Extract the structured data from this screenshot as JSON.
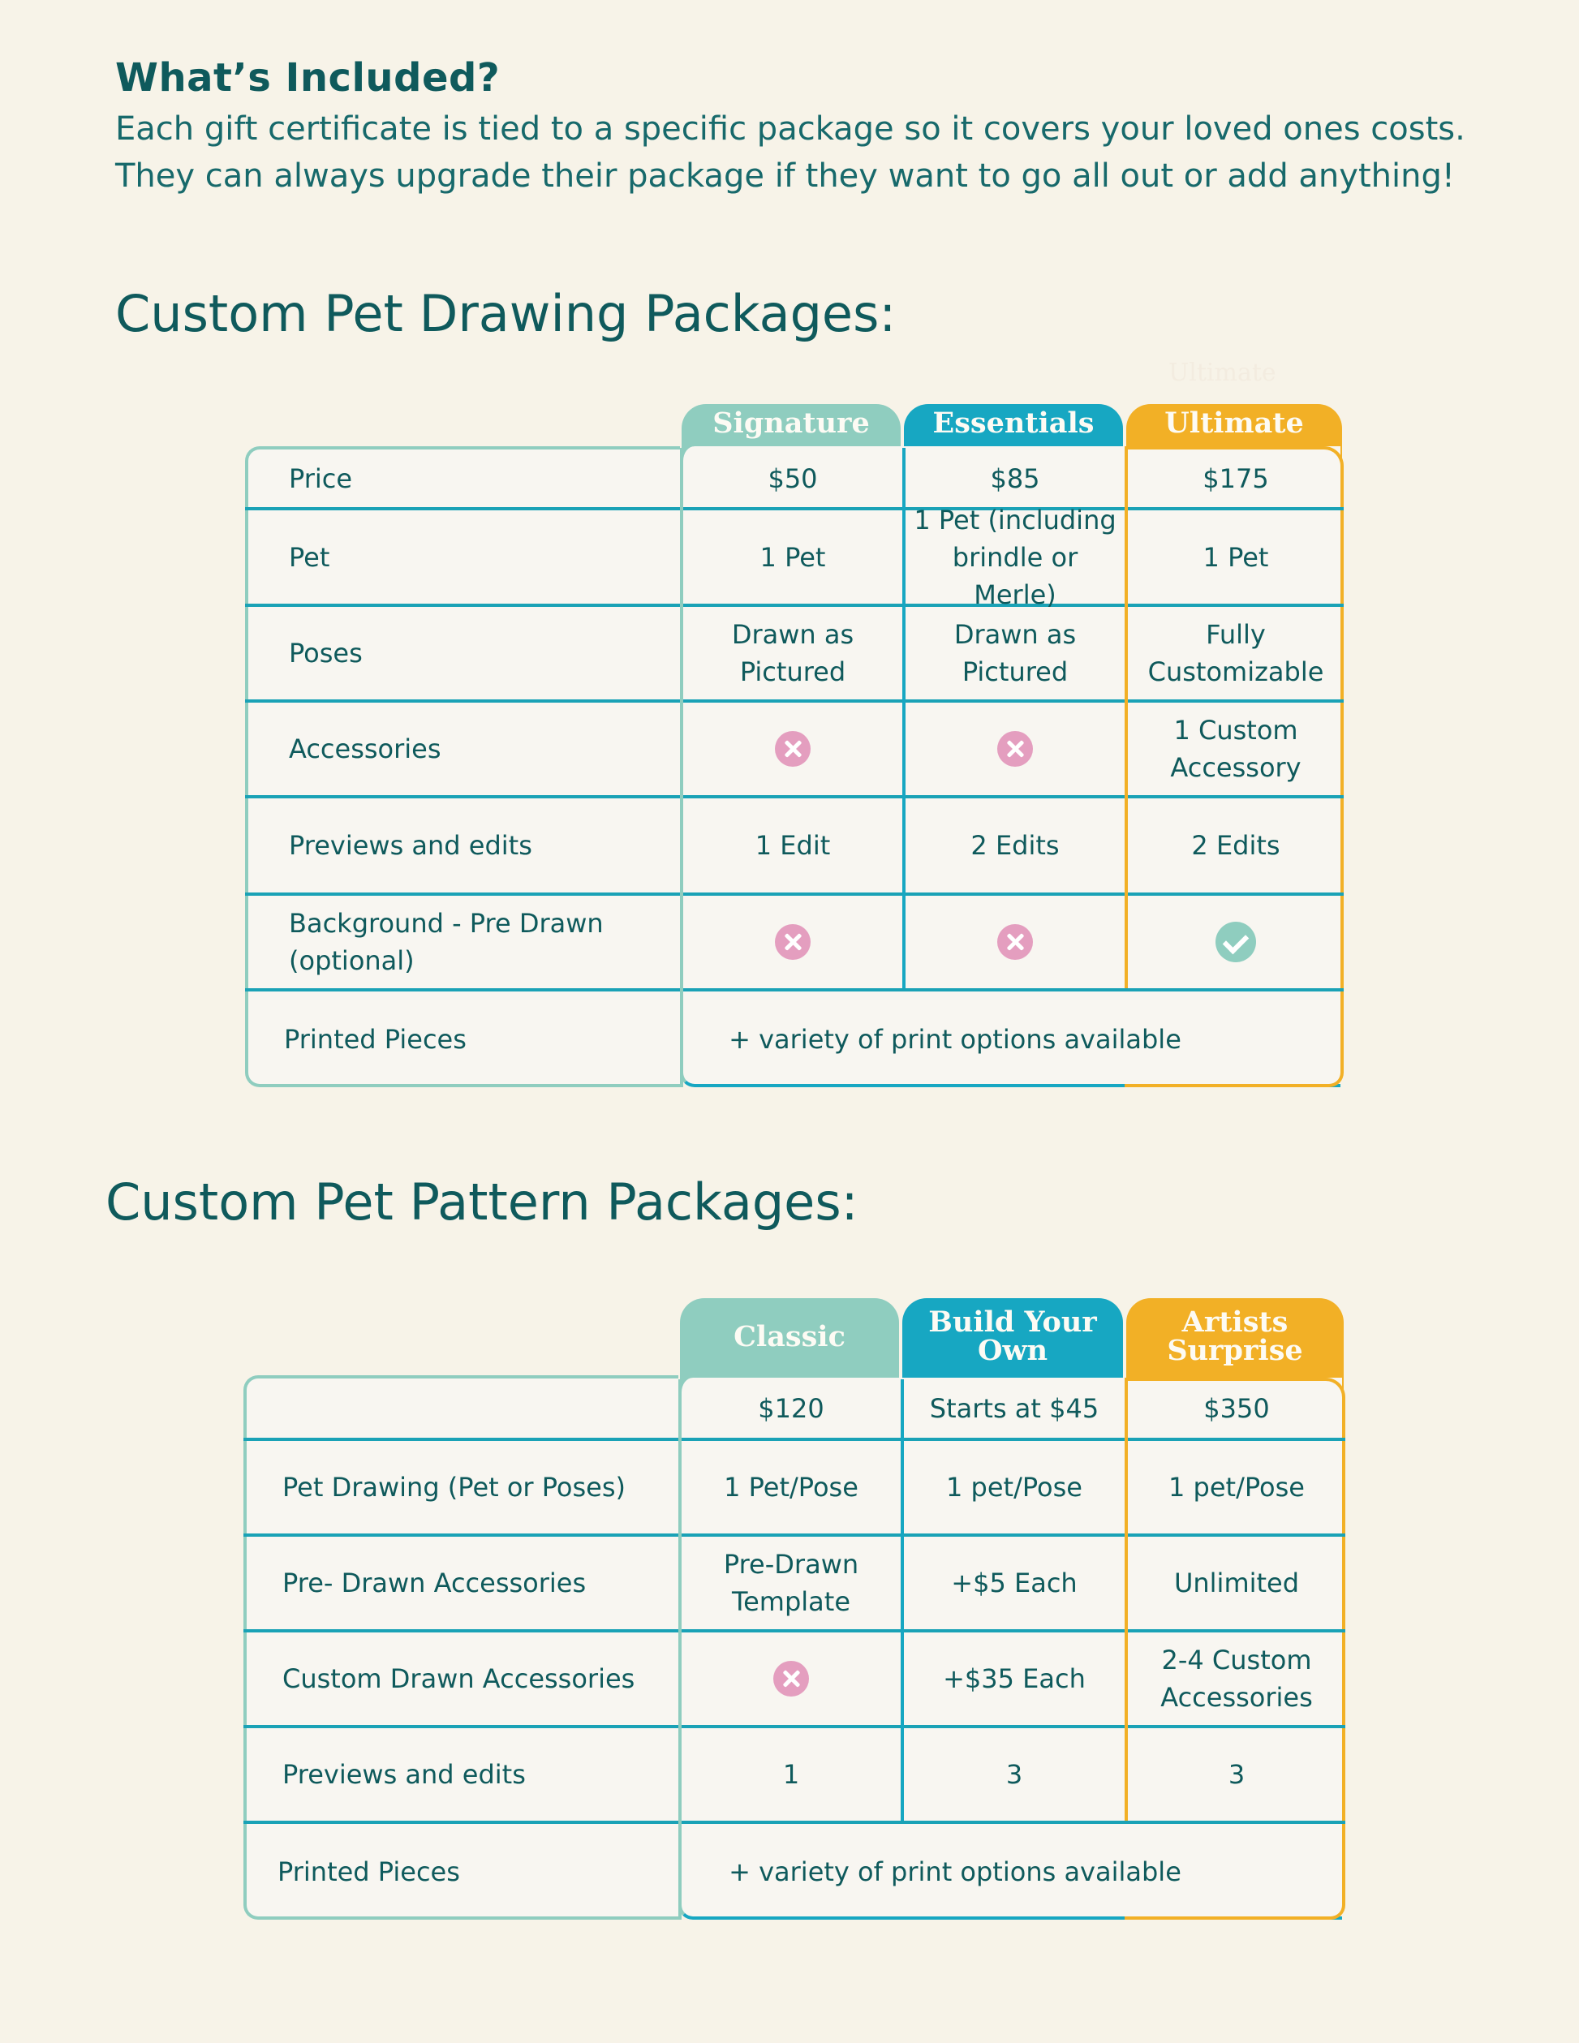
{
  "intro": {
    "heading": "What’s Included?",
    "line1": "Each gift certificate is tied to a specific package so it covers your loved ones costs.",
    "line2": "They can always upgrade their package if they want to go all out or add anything!"
  },
  "colors": {
    "background": "#f7f3e8",
    "text": "#0f5a5c",
    "tier1": "#8fcdbf",
    "tier2": "#17a7c2",
    "tier3": "#f2b026",
    "row_line": "#1aa2b6",
    "cross": "#e49ebf"
  },
  "drawing": {
    "title": "Custom Pet Drawing Packages:",
    "ghost_label": "Ultimate",
    "columns": [
      "Signature",
      "Essentials",
      "Ultimate"
    ],
    "rows": [
      {
        "label": "Price",
        "values": [
          "$50",
          "$85",
          "$175"
        ]
      },
      {
        "label": "Pet",
        "values": [
          "1 Pet",
          "1 Pet (including brindle or Merle)",
          "1 Pet"
        ]
      },
      {
        "label": "Poses",
        "values": [
          "Drawn as Pictured",
          "Drawn as Pictured",
          "Fully Customizable"
        ]
      },
      {
        "label": "Accessories",
        "values": [
          "x-icon",
          "x-icon",
          "1 Custom Accessory"
        ]
      },
      {
        "label": "Previews and edits",
        "values": [
          "1 Edit",
          "2 Edits",
          "2 Edits"
        ]
      },
      {
        "label": "Background - Pre Drawn (optional)",
        "values": [
          "x-icon",
          "x-icon",
          "check-icon"
        ]
      }
    ],
    "printed_label": "Printed Pieces",
    "printed_value": "+ variety of print options available"
  },
  "pattern": {
    "title": "Custom Pet Pattern Packages:",
    "columns": [
      "Classic",
      "Build Your Own",
      "Artists Surprise"
    ],
    "rows": [
      {
        "label": "",
        "values": [
          "$120",
          "Starts at $45",
          "$350"
        ]
      },
      {
        "label": "Pet Drawing (Pet or Poses)",
        "values": [
          "1 Pet/Pose",
          "1 pet/Pose",
          "1 pet/Pose"
        ]
      },
      {
        "label": "Pre- Drawn Accessories",
        "values": [
          "Pre-Drawn Template",
          "+$5 Each",
          "Unlimited"
        ]
      },
      {
        "label": "Custom Drawn Accessories",
        "values": [
          "x-icon",
          "+$35 Each",
          "2-4 Custom Accessories"
        ]
      },
      {
        "label": "Previews and edits",
        "values": [
          "1",
          "3",
          "3"
        ]
      }
    ],
    "printed_label": "Printed Pieces",
    "printed_value": "+ variety of print options available"
  }
}
